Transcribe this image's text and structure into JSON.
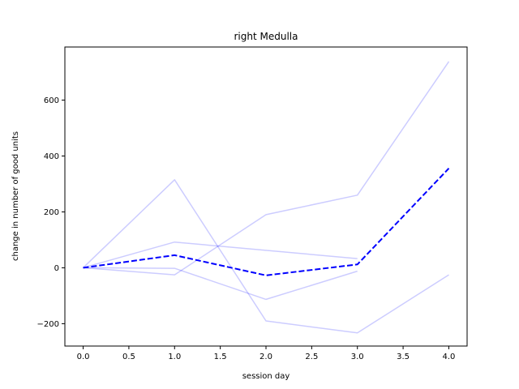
{
  "chart_data": {
    "type": "line",
    "title": "right Medulla",
    "xlabel": "session day",
    "ylabel": "change in number of good units",
    "xlim": [
      -0.2,
      4.2
    ],
    "ylim": [
      -280,
      790
    ],
    "xticks": [
      0.0,
      0.5,
      1.0,
      1.5,
      2.0,
      2.5,
      3.0,
      3.5,
      4.0
    ],
    "xtick_labels": [
      "0.0",
      "0.5",
      "1.0",
      "1.5",
      "2.0",
      "2.5",
      "3.0",
      "3.5",
      "4.0"
    ],
    "yticks": [
      -200,
      0,
      200,
      400,
      600
    ],
    "ytick_labels": [
      "−200",
      "0",
      "200",
      "400",
      "600"
    ],
    "grid": false,
    "colors": {
      "series": "#0000ff",
      "mean": "#0000ff"
    },
    "series": [
      {
        "x": [
          0,
          1,
          2,
          3,
          4
        ],
        "values": [
          0,
          315,
          -190,
          -233,
          -25
        ],
        "style": "solid",
        "alpha": 0.2
      },
      {
        "x": [
          0,
          1,
          2,
          3,
          4
        ],
        "values": [
          0,
          -25,
          190,
          260,
          738
        ],
        "style": "solid",
        "alpha": 0.2
      },
      {
        "x": [
          0,
          1,
          3
        ],
        "values": [
          0,
          92,
          33
        ],
        "style": "solid",
        "alpha": 0.2
      },
      {
        "x": [
          0,
          1,
          2,
          3
        ],
        "values": [
          0,
          -2,
          -113,
          -12
        ],
        "style": "solid",
        "alpha": 0.2
      },
      {
        "x": [
          0,
          1,
          2,
          3,
          4
        ],
        "values": [
          0,
          45,
          -27,
          12,
          356
        ],
        "style": "dashed",
        "alpha": 1.0
      }
    ]
  }
}
